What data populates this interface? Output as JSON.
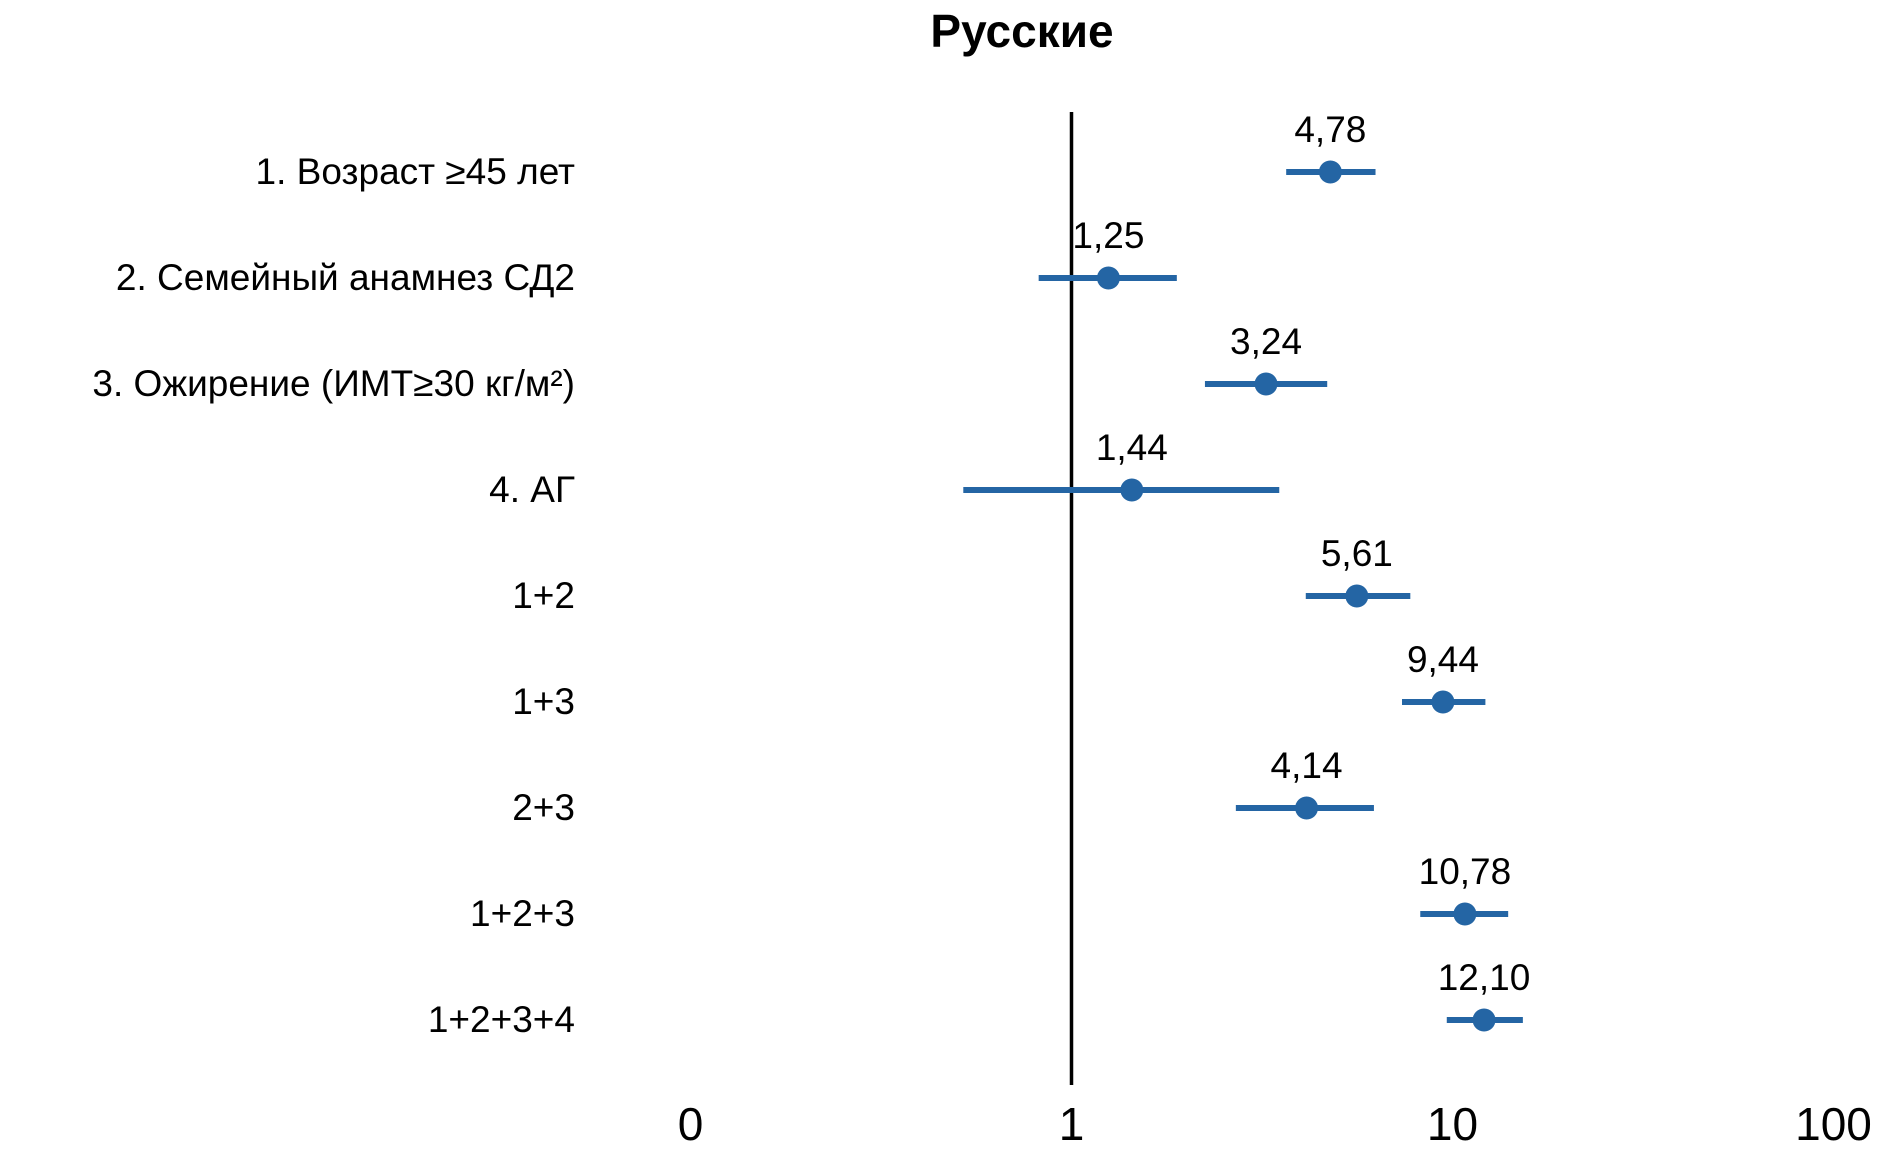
{
  "chart_data": {
    "type": "scatter",
    "variant": "forest-plot",
    "title": "Русские",
    "x_scale": "log10",
    "x_axis": {
      "tick_labels": [
        "0",
        "1",
        "10",
        "100"
      ],
      "tick_log_positions": [
        -1,
        0,
        1,
        2
      ],
      "range_decades": [
        -1,
        2
      ]
    },
    "reference_line_x": 1,
    "grid": false,
    "legend": null,
    "rows": [
      {
        "label": "1. Возраст ≥45 лет",
        "value_label": "4,78",
        "value": 4.78,
        "ci_low": 3.66,
        "ci_high": 6.28
      },
      {
        "label": "2. Семейный анамнез СД2",
        "value_label": "1,25",
        "value": 1.25,
        "ci_low": 0.82,
        "ci_high": 1.89
      },
      {
        "label": "3. Ожирение (ИМТ≥30 кг/м²)",
        "value_label": "3,24",
        "value": 3.24,
        "ci_low": 2.24,
        "ci_high": 4.69
      },
      {
        "label": "4. АГ",
        "value_label": "1,44",
        "value": 1.44,
        "ci_low": 0.52,
        "ci_high": 3.51
      },
      {
        "label": "1+2",
        "value_label": "5,61",
        "value": 5.61,
        "ci_low": 4.12,
        "ci_high": 7.75
      },
      {
        "label": "1+3",
        "value_label": "9,44",
        "value": 9.44,
        "ci_low": 7.37,
        "ci_high": 12.2
      },
      {
        "label": "2+3",
        "value_label": "4,14",
        "value": 4.14,
        "ci_low": 2.7,
        "ci_high": 6.22
      },
      {
        "label": "1+2+3",
        "value_label": "10,78",
        "value": 10.78,
        "ci_low": 8.23,
        "ci_high": 14.0
      },
      {
        "label": "1+2+3+4",
        "value_label": "12,10",
        "value": 12.1,
        "ci_low": 9.66,
        "ci_high": 15.3
      }
    ],
    "colors": {
      "marker": "#2465a4",
      "error_bar": "#2465a4",
      "reference_line": "#000000",
      "text": "#000000"
    }
  }
}
